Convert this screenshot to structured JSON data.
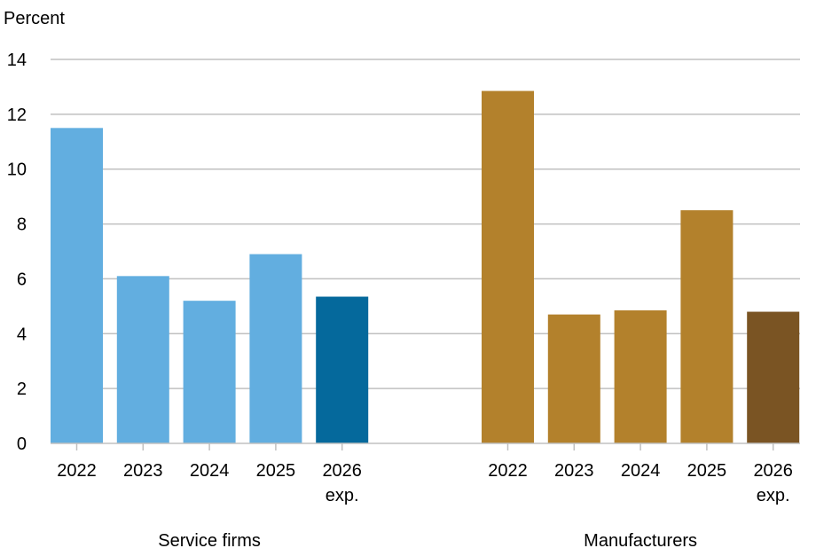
{
  "chart_data": {
    "type": "bar",
    "ylabel": "Percent",
    "ylim": [
      0,
      14
    ],
    "yticks": [
      0,
      2,
      4,
      6,
      8,
      10,
      12,
      14
    ],
    "grid": true,
    "groups": [
      {
        "name": "Service firms",
        "bars": [
          {
            "label": [
              "2022"
            ],
            "value": 11.5,
            "color": "#62AEE0"
          },
          {
            "label": [
              "2023"
            ],
            "value": 6.1,
            "color": "#62AEE0"
          },
          {
            "label": [
              "2024"
            ],
            "value": 5.2,
            "color": "#62AEE0"
          },
          {
            "label": [
              "2025"
            ],
            "value": 6.9,
            "color": "#62AEE0"
          },
          {
            "label": [
              "2026",
              "exp."
            ],
            "value": 5.35,
            "color": "#05699C"
          }
        ]
      },
      {
        "name": "Manufacturers",
        "bars": [
          {
            "label": [
              "2022"
            ],
            "value": 12.85,
            "color": "#B3812C"
          },
          {
            "label": [
              "2023"
            ],
            "value": 4.7,
            "color": "#B3812C"
          },
          {
            "label": [
              "2024"
            ],
            "value": 4.85,
            "color": "#B3812C"
          },
          {
            "label": [
              "2025"
            ],
            "value": 8.5,
            "color": "#B3812C"
          },
          {
            "label": [
              "2026",
              "exp."
            ],
            "value": 4.8,
            "color": "#7A5423"
          }
        ]
      }
    ]
  }
}
